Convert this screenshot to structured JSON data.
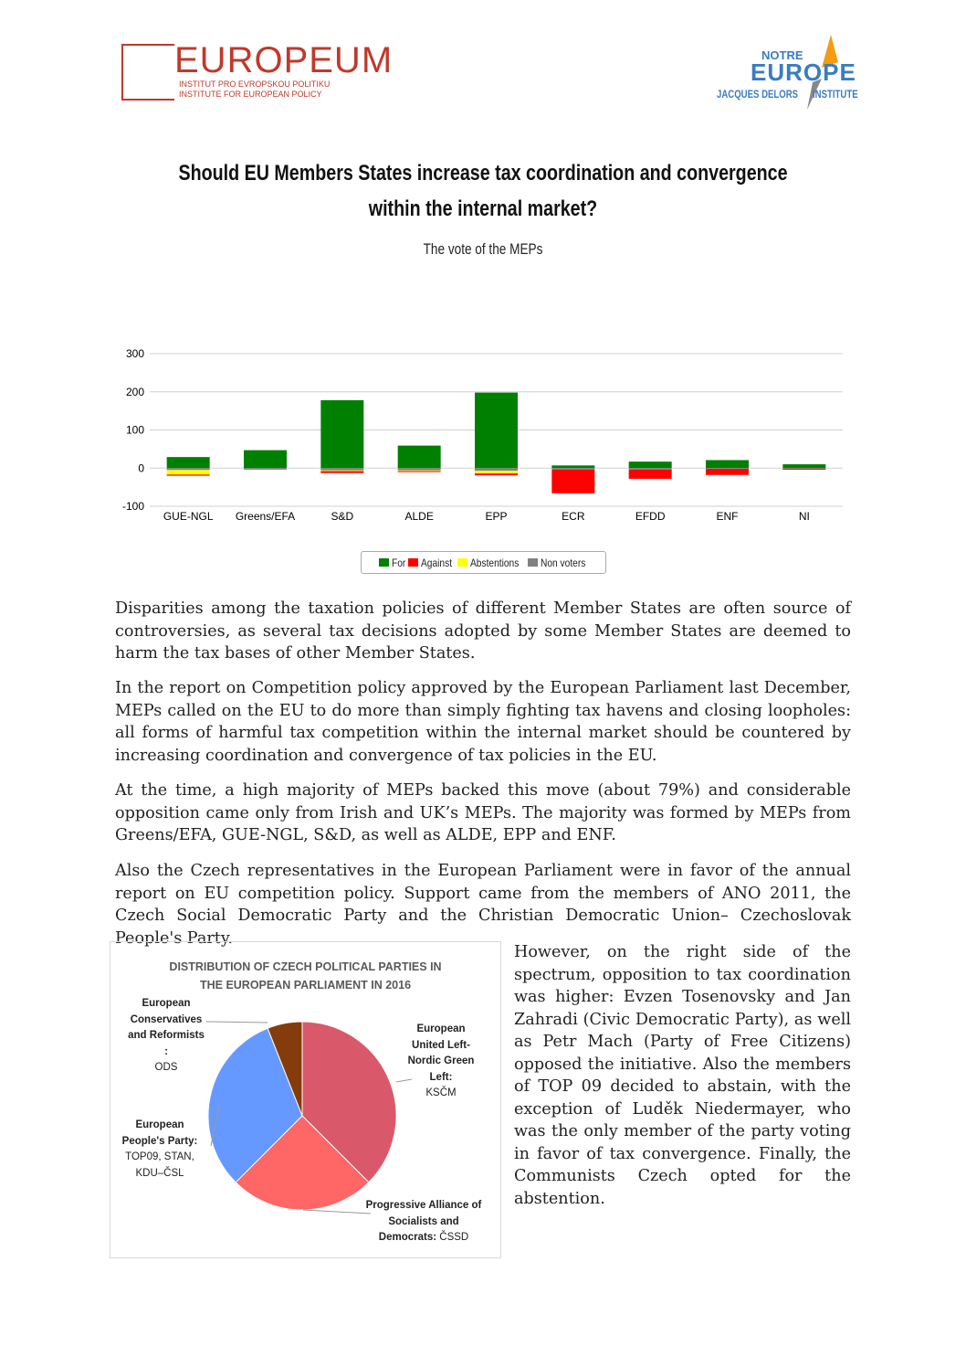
{
  "logos": {
    "left": {
      "word": "EUROPEUM",
      "line1": "INSTITUT PRO EVROPSKOU POLITIKU",
      "line2": "INSTITUTE FOR EUROPEAN POLICY",
      "color": "#c0392b"
    },
    "right": {
      "line1": "NOTRE",
      "line2": "EUROPE",
      "line3": "JACQUES DELORS",
      "line4": "INSTITUTE",
      "color": "#3a7cc0",
      "accent": "#f39c12"
    }
  },
  "title": "Should EU Members States increase tax coordination and convergence within the internal market?",
  "subtitle": "The vote of the MEPs",
  "chart_data": [
    {
      "type": "bar",
      "stacked": true,
      "categories": [
        "GUE-NGL",
        "Greens/EFA",
        "S&D",
        "ALDE",
        "EPP",
        "ECR",
        "EFDD",
        "ENF",
        "NI"
      ],
      "series": [
        {
          "name": "For",
          "color": "#008000",
          "values": [
            29,
            47,
            178,
            59,
            198,
            7,
            17,
            21,
            10
          ]
        },
        {
          "name": "Non voters",
          "color": "#808080",
          "values": [
            -5,
            -4,
            -6,
            -6,
            -7,
            -4,
            -4,
            -2,
            -2
          ]
        },
        {
          "name": "Abstentions",
          "color": "#ffff00",
          "values": [
            -12,
            0,
            -2,
            -2,
            -7,
            0,
            0,
            0,
            0
          ]
        },
        {
          "name": "Against",
          "color": "#ff0000",
          "values": [
            -3,
            0,
            -5,
            -2,
            -5,
            -62,
            -24,
            -16,
            -2
          ]
        }
      ],
      "legend_order": [
        "For",
        "Against",
        "Abstentions",
        "Non voters"
      ],
      "yticks": [
        300,
        200,
        100,
        0,
        -100
      ],
      "ylim": [
        -100,
        300
      ],
      "grid": true,
      "legend": "bottom"
    },
    {
      "type": "pie",
      "title": "DISTRIBUTION OF CZECH POLITICAL PARTIES IN THE EUROPEAN PARLIAMENT IN 2016",
      "slices": [
        {
          "group": "European United Left-Nordic Green Left:",
          "parties": "KSČM",
          "value": 37.5,
          "color": "#d9596a"
        },
        {
          "group": "Progressive Alliance of Socialists and Democrats:",
          "parties": "ČSSD",
          "value": 25,
          "color": "#ff6666"
        },
        {
          "group": "European People's Party:",
          "parties": "TOP09, STAN, KDU–ČSL",
          "value": 31.5,
          "color": "#6699ff"
        },
        {
          "group": "European Conservatives and Reformists :",
          "parties": "ODS",
          "value": 6,
          "color": "#843c0c"
        }
      ]
    }
  ],
  "paragraphs": [
    " Disparities among the taxation policies of different Member States are often source of controversies, as several tax decisions adopted by some Member States are deemed to harm the tax bases of other Member States.",
    "In the report on Competition policy approved by the European Parliament last December, MEPs called on the EU to do more than simply fighting tax havens and closing loopholes: all forms of harmful tax competition within the internal market should be countered by increasing coordination and convergence of tax policies in the EU.",
    "At the time, a high majority of MEPs backed this move (about 79%) and considerable opposition came only from Irish and UK’s MEPs. The majority was formed by MEPs from Greens/EFA, GUE-NGL, S&D, as well as ALDE, EPP and ENF.",
    "Also the Czech representatives in the European Parliament were in favor of the annual report on EU competition policy. Support came from the members of ANO 2011, the Czech Social Democratic Party and the Christian Democratic Union– Czechoslovak People's Party.",
    "However, on the right side of the spectrum, opposition to tax coordination was higher: Evzen Tosenovsky and Jan Zahradi (Civic Democratic Party), as well as Petr Mach (Party of Free Citizens) opposed the initiative. Also the members of TOP 09 decided to abstain, with the exception of Luděk Niedermayer, who was the only member of the party voting in favor of tax convergence. Finally, the Communists Czech opted for the abstention."
  ]
}
